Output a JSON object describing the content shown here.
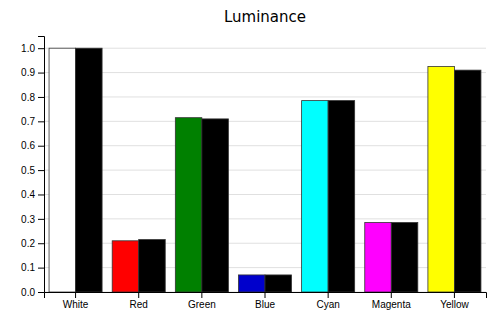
{
  "chart_data": {
    "type": "bar",
    "title": "Luminance",
    "categories": [
      "White",
      "Red",
      "Green",
      "Blue",
      "Cyan",
      "Magenta",
      "Yellow"
    ],
    "series": [
      {
        "colors": [
          "#ffffff",
          "#ff0000",
          "#008000",
          "#0000cc",
          "#00ffff",
          "#ff00ff",
          "#ffff00"
        ],
        "values": [
          1.0,
          0.21,
          0.715,
          0.07,
          0.785,
          0.285,
          0.925
        ]
      },
      {
        "color": "#000000",
        "values": [
          1.0,
          0.215,
          0.71,
          0.07,
          0.785,
          0.285,
          0.91
        ]
      }
    ],
    "ylim": [
      0,
      1.05
    ],
    "yticks": [
      {
        "value": 0,
        "label": "0.0"
      },
      0.1,
      0.2,
      0.3,
      0.4,
      0.5,
      0.6,
      0.7,
      0.8,
      0.9,
      {
        "value": 1,
        "label": "1.0"
      }
    ],
    "grid": true
  }
}
